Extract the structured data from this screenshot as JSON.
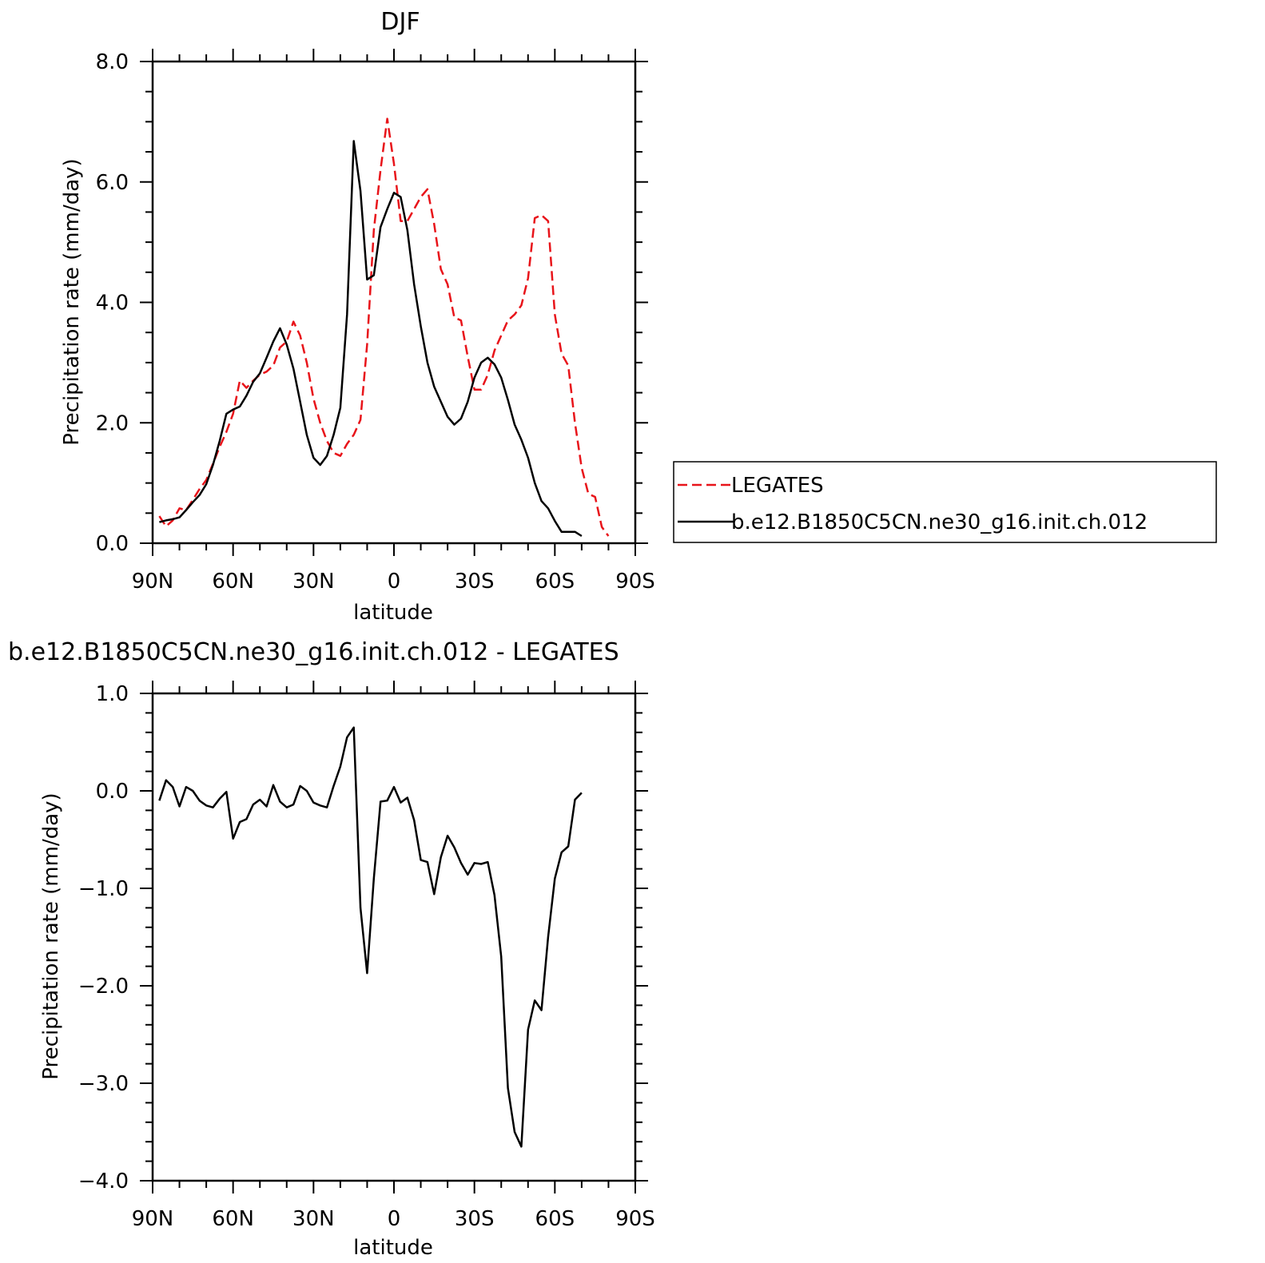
{
  "chart_data": [
    {
      "type": "line",
      "title": "DJF",
      "xlabel": "latitude",
      "ylabel": "Precipitation rate (mm/day)",
      "xlim": [
        90,
        -90
      ],
      "ylim": [
        0,
        8
      ],
      "x_ticks": [
        {
          "value": 90,
          "label": "90N"
        },
        {
          "value": 60,
          "label": "60N"
        },
        {
          "value": 30,
          "label": "30N"
        },
        {
          "value": 0,
          "label": "0"
        },
        {
          "value": -30,
          "label": "30S"
        },
        {
          "value": -60,
          "label": "60S"
        },
        {
          "value": -90,
          "label": "90S"
        }
      ],
      "y_ticks": [
        {
          "value": 0,
          "label": "0.0"
        },
        {
          "value": 2,
          "label": "2.0"
        },
        {
          "value": 4,
          "label": "4.0"
        },
        {
          "value": 6,
          "label": "6.0"
        },
        {
          "value": 8,
          "label": "8.0"
        }
      ],
      "legend": {
        "position": "right",
        "entries": [
          {
            "label": "LEGATES",
            "color": "#e8141a",
            "dash": "dashed"
          },
          {
            "label": "b.e12.B1850C5CN.ne30_g16.init.ch.012",
            "color": "#000000",
            "dash": "solid"
          }
        ]
      },
      "series": [
        {
          "name": "LEGATES",
          "color": "#e8141a",
          "dash": "dashed",
          "points": [
            [
              87.5,
              0.45
            ],
            [
              85,
              0.28
            ],
            [
              82.5,
              0.38
            ],
            [
              80,
              0.58
            ],
            [
              77.5,
              0.55
            ],
            [
              75,
              0.72
            ],
            [
              72.5,
              0.9
            ],
            [
              70,
              1.05
            ],
            [
              67.5,
              1.32
            ],
            [
              65,
              1.6
            ],
            [
              62.5,
              1.85
            ],
            [
              60,
              2.15
            ],
            [
              57.5,
              2.7
            ],
            [
              55,
              2.58
            ],
            [
              52.5,
              2.7
            ],
            [
              50,
              2.8
            ],
            [
              47.5,
              2.85
            ],
            [
              45,
              2.95
            ],
            [
              42.5,
              3.25
            ],
            [
              40,
              3.35
            ],
            [
              37.5,
              3.68
            ],
            [
              35,
              3.45
            ],
            [
              32.5,
              3.0
            ],
            [
              30,
              2.4
            ],
            [
              27.5,
              2.0
            ],
            [
              25,
              1.7
            ],
            [
              22.5,
              1.5
            ],
            [
              20,
              1.45
            ],
            [
              17.5,
              1.65
            ],
            [
              15,
              1.8
            ],
            [
              12.5,
              2.05
            ],
            [
              10,
              3.3
            ],
            [
              7.5,
              5.2
            ],
            [
              5,
              6.2
            ],
            [
              2.5,
              7.05
            ],
            [
              0,
              6.3
            ],
            [
              -2.5,
              5.35
            ],
            [
              -5,
              5.35
            ],
            [
              -7.5,
              5.55
            ],
            [
              -10,
              5.75
            ],
            [
              -12.5,
              5.88
            ],
            [
              -15,
              5.3
            ],
            [
              -17.5,
              4.55
            ],
            [
              -20,
              4.3
            ],
            [
              -22.5,
              3.75
            ],
            [
              -25,
              3.7
            ],
            [
              -27.5,
              3.1
            ],
            [
              -30,
              2.55
            ],
            [
              -32.5,
              2.55
            ],
            [
              -35,
              2.8
            ],
            [
              -37.5,
              3.2
            ],
            [
              -40,
              3.45
            ],
            [
              -42.5,
              3.7
            ],
            [
              -45,
              3.8
            ],
            [
              -47.5,
              3.95
            ],
            [
              -50,
              4.4
            ],
            [
              -52.5,
              5.4
            ],
            [
              -55,
              5.45
            ],
            [
              -57.5,
              5.35
            ],
            [
              -60,
              3.8
            ],
            [
              -62.5,
              3.15
            ],
            [
              -65,
              2.95
            ],
            [
              -67.5,
              2.0
            ],
            [
              -70,
              1.25
            ],
            [
              -72.5,
              0.82
            ],
            [
              -75,
              0.77
            ],
            [
              -77.5,
              0.27
            ],
            [
              -80,
              0.12
            ]
          ]
        },
        {
          "name": "b.e12.B1850C5CN.ne30_g16.init.ch.012",
          "color": "#000000",
          "dash": "solid",
          "points": [
            [
              87.5,
              0.35
            ],
            [
              85,
              0.38
            ],
            [
              82.5,
              0.4
            ],
            [
              80,
              0.43
            ],
            [
              77.5,
              0.55
            ],
            [
              75,
              0.68
            ],
            [
              72.5,
              0.8
            ],
            [
              70,
              0.98
            ],
            [
              67.5,
              1.3
            ],
            [
              65,
              1.7
            ],
            [
              62.5,
              2.15
            ],
            [
              60,
              2.22
            ],
            [
              57.5,
              2.27
            ],
            [
              55,
              2.45
            ],
            [
              52.5,
              2.68
            ],
            [
              50,
              2.82
            ],
            [
              47.5,
              3.08
            ],
            [
              45,
              3.35
            ],
            [
              42.5,
              3.57
            ],
            [
              40,
              3.3
            ],
            [
              37.5,
              2.9
            ],
            [
              35,
              2.35
            ],
            [
              32.5,
              1.8
            ],
            [
              30,
              1.42
            ],
            [
              27.5,
              1.3
            ],
            [
              25,
              1.45
            ],
            [
              22.5,
              1.8
            ],
            [
              20,
              2.25
            ],
            [
              17.5,
              3.8
            ],
            [
              15,
              6.68
            ],
            [
              12.5,
              5.85
            ],
            [
              10,
              4.38
            ],
            [
              7.5,
              4.45
            ],
            [
              5,
              5.25
            ],
            [
              2.5,
              5.55
            ],
            [
              0,
              5.82
            ],
            [
              -2.5,
              5.75
            ],
            [
              -5,
              5.2
            ],
            [
              -7.5,
              4.3
            ],
            [
              -10,
              3.6
            ],
            [
              -12.5,
              3.0
            ],
            [
              -15,
              2.6
            ],
            [
              -17.5,
              2.35
            ],
            [
              -20,
              2.1
            ],
            [
              -22.5,
              1.97
            ],
            [
              -25,
              2.07
            ],
            [
              -27.5,
              2.35
            ],
            [
              -30,
              2.75
            ],
            [
              -32.5,
              3.0
            ],
            [
              -35,
              3.08
            ],
            [
              -37.5,
              2.97
            ],
            [
              -40,
              2.75
            ],
            [
              -42.5,
              2.38
            ],
            [
              -45,
              1.97
            ],
            [
              -47.5,
              1.72
            ],
            [
              -50,
              1.42
            ],
            [
              -52.5,
              1.0
            ],
            [
              -55,
              0.7
            ],
            [
              -57.5,
              0.58
            ],
            [
              -60,
              0.37
            ],
            [
              -62.5,
              0.19
            ],
            [
              -65,
              0.19
            ],
            [
              -67.5,
              0.19
            ],
            [
              -70,
              0.12
            ]
          ]
        }
      ]
    },
    {
      "type": "line",
      "title": "b.e12.B1850C5CN.ne30_g16.init.ch.012 - LEGATES",
      "xlabel": "latitude",
      "ylabel": "Precipitation rate (mm/day)",
      "xlim": [
        90,
        -90
      ],
      "ylim": [
        -4,
        1
      ],
      "x_ticks": [
        {
          "value": 90,
          "label": "90N"
        },
        {
          "value": 60,
          "label": "60N"
        },
        {
          "value": 30,
          "label": "30N"
        },
        {
          "value": 0,
          "label": "0"
        },
        {
          "value": -30,
          "label": "30S"
        },
        {
          "value": -60,
          "label": "60S"
        },
        {
          "value": -90,
          "label": "90S"
        }
      ],
      "y_ticks": [
        {
          "value": -4,
          "label": "−4.0"
        },
        {
          "value": -3,
          "label": "−3.0"
        },
        {
          "value": -2,
          "label": "−2.0"
        },
        {
          "value": -1,
          "label": "−1.0"
        },
        {
          "value": 0,
          "label": "0.0"
        },
        {
          "value": 1,
          "label": "1.0"
        }
      ],
      "series": [
        {
          "color": "#000000",
          "dash": "solid",
          "points": [
            [
              87.5,
              -0.1
            ],
            [
              85,
              0.11
            ],
            [
              82.5,
              0.04
            ],
            [
              80,
              -0.16
            ],
            [
              77.5,
              0.04
            ],
            [
              75,
              0.0
            ],
            [
              72.5,
              -0.1
            ],
            [
              70,
              -0.15
            ],
            [
              67.5,
              -0.17
            ],
            [
              65,
              -0.08
            ],
            [
              62.5,
              -0.01
            ],
            [
              60,
              -0.49
            ],
            [
              57.5,
              -0.32
            ],
            [
              55,
              -0.29
            ],
            [
              52.5,
              -0.14
            ],
            [
              50,
              -0.09
            ],
            [
              47.5,
              -0.16
            ],
            [
              45,
              0.06
            ],
            [
              42.5,
              -0.11
            ],
            [
              40,
              -0.17
            ],
            [
              37.5,
              -0.14
            ],
            [
              35,
              0.05
            ],
            [
              32.5,
              0.0
            ],
            [
              30,
              -0.12
            ],
            [
              27.5,
              -0.15
            ],
            [
              25,
              -0.17
            ],
            [
              22.5,
              0.05
            ],
            [
              20,
              0.25
            ],
            [
              17.5,
              0.55
            ],
            [
              15,
              0.65
            ],
            [
              12.5,
              -1.2
            ],
            [
              10,
              -1.87
            ],
            [
              7.5,
              -0.9
            ],
            [
              5,
              -0.11
            ],
            [
              2.5,
              -0.1
            ],
            [
              0,
              0.04
            ],
            [
              -2.5,
              -0.12
            ],
            [
              -5,
              -0.07
            ],
            [
              -7.5,
              -0.3
            ],
            [
              -10,
              -0.71
            ],
            [
              -12.5,
              -0.73
            ],
            [
              -15,
              -1.06
            ],
            [
              -17.5,
              -0.68
            ],
            [
              -20,
              -0.46
            ],
            [
              -22.5,
              -0.58
            ],
            [
              -25,
              -0.74
            ],
            [
              -27.5,
              -0.86
            ],
            [
              -30,
              -0.74
            ],
            [
              -32.5,
              -0.75
            ],
            [
              -35,
              -0.73
            ],
            [
              -37.5,
              -1.07
            ],
            [
              -40,
              -1.7
            ],
            [
              -42.5,
              -3.05
            ],
            [
              -45,
              -3.5
            ],
            [
              -47.5,
              -3.65
            ],
            [
              -50,
              -2.45
            ],
            [
              -52.5,
              -2.15
            ],
            [
              -55,
              -2.25
            ],
            [
              -57.5,
              -1.5
            ],
            [
              -60,
              -0.9
            ],
            [
              -62.5,
              -0.63
            ],
            [
              -65,
              -0.57
            ],
            [
              -67.5,
              -0.09
            ],
            [
              -70,
              -0.02
            ]
          ]
        }
      ]
    }
  ]
}
